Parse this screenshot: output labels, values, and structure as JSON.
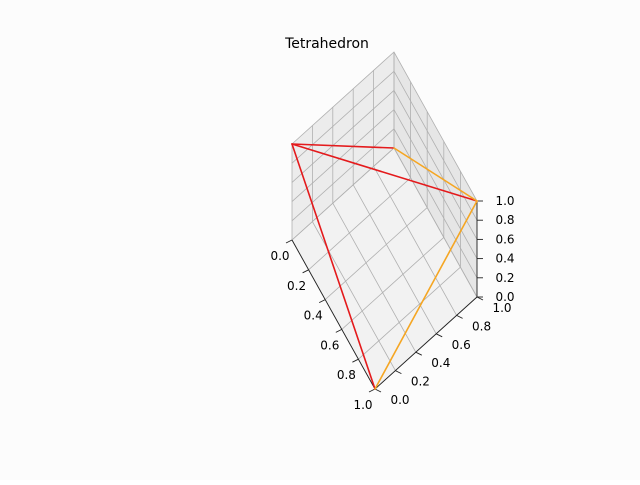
{
  "chart_data": {
    "type": "line",
    "projection": "3d",
    "title": "Tetrahedron",
    "xlabel": "",
    "ylabel": "",
    "zlabel": "",
    "xlim": [
      0,
      1
    ],
    "ylim": [
      0,
      1
    ],
    "zlim": [
      0,
      1
    ],
    "grid": true,
    "x_ticks": [
      "0.0",
      "0.2",
      "0.4",
      "0.6",
      "0.8",
      "1.0"
    ],
    "y_ticks": [
      "0.0",
      "0.2",
      "0.4",
      "0.6",
      "0.8",
      "1.0"
    ],
    "z_ticks": [
      "0.0",
      "0.2",
      "0.4",
      "0.6",
      "0.8",
      "1.0"
    ],
    "vertices": [
      {
        "x": 0,
        "y": 0,
        "z": 1
      },
      {
        "x": 1,
        "y": 0,
        "z": 0
      },
      {
        "x": 0,
        "y": 1,
        "z": 0
      },
      {
        "x": 1,
        "y": 1,
        "z": 1
      }
    ],
    "edges": [
      {
        "from": 0,
        "to": 1,
        "color": "#e41a1c"
      },
      {
        "from": 0,
        "to": 2,
        "color": "#e41a1c"
      },
      {
        "from": 0,
        "to": 3,
        "color": "#e41a1c"
      },
      {
        "from": 1,
        "to": 3,
        "color": "#f5a623"
      },
      {
        "from": 2,
        "to": 3,
        "color": "#f5a623"
      }
    ]
  }
}
